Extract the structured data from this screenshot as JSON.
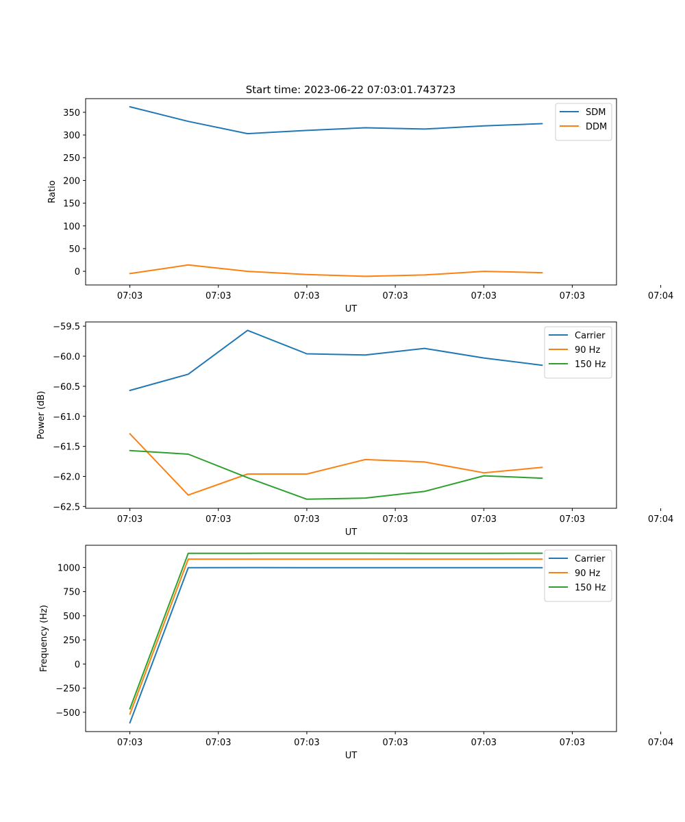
{
  "figure": {
    "title": "Start time: 2023-06-22 07:03:01.743723"
  },
  "chart_data": [
    {
      "type": "line",
      "xlabel": "UT",
      "ylabel": "Ratio",
      "x_tick_labels": [
        "07:03",
        "07:03",
        "07:03",
        "07:03",
        "07:03",
        "07:03",
        "07:04"
      ],
      "x_range": [
        -0.5,
        5.5
      ],
      "x": [
        0,
        0.66,
        1.33,
        2.0,
        2.66,
        3.33,
        4.0,
        4.66
      ],
      "ylim": [
        -30,
        380
      ],
      "y_ticks": [
        0,
        50,
        100,
        150,
        200,
        250,
        300,
        350
      ],
      "y_tick_labels": [
        "0",
        "50",
        "100",
        "150",
        "200",
        "250",
        "300",
        "350"
      ],
      "legend": "top-right",
      "series": [
        {
          "name": "SDM",
          "color": "#1f77b4",
          "values": [
            362,
            330,
            303,
            310,
            316,
            313,
            320,
            325
          ]
        },
        {
          "name": "DDM",
          "color": "#ff7f0e",
          "values": [
            -5,
            14,
            0,
            -7,
            -11,
            -8,
            0,
            -3
          ]
        }
      ]
    },
    {
      "type": "line",
      "xlabel": "UT",
      "ylabel": "Power (dB)",
      "x_tick_labels": [
        "07:03",
        "07:03",
        "07:03",
        "07:03",
        "07:03",
        "07:03",
        "07:04"
      ],
      "x_range": [
        -0.5,
        5.5
      ],
      "x": [
        0,
        0.66,
        1.33,
        2.0,
        2.66,
        3.33,
        4.0,
        4.66
      ],
      "ylim": [
        -62.53,
        -59.43
      ],
      "y_ticks": [
        -62.5,
        -62.0,
        -61.5,
        -61.0,
        -60.5,
        -60.0,
        -59.5
      ],
      "y_tick_labels": [
        "−62.5",
        "−62.0",
        "−61.5",
        "−61.0",
        "−60.5",
        "−60.0",
        "−59.5"
      ],
      "legend": "top-right",
      "series": [
        {
          "name": "Carrier",
          "color": "#1f77b4",
          "values": [
            -60.57,
            -60.3,
            -59.57,
            -59.96,
            -59.98,
            -59.87,
            -60.03,
            -60.15
          ]
        },
        {
          "name": "90 Hz",
          "color": "#ff7f0e",
          "values": [
            -61.29,
            -62.31,
            -61.96,
            -61.96,
            -61.72,
            -61.76,
            -61.94,
            -61.85
          ]
        },
        {
          "name": "150 Hz",
          "color": "#2ca02c",
          "values": [
            -61.57,
            -61.63,
            -62.02,
            -62.38,
            -62.36,
            -62.25,
            -61.99,
            -62.03
          ]
        }
      ]
    },
    {
      "type": "line",
      "xlabel": "UT",
      "ylabel": "Frequency (Hz)",
      "x_tick_labels": [
        "07:03",
        "07:03",
        "07:03",
        "07:03",
        "07:03",
        "07:03",
        "07:04"
      ],
      "x_range": [
        -0.5,
        5.5
      ],
      "x": [
        0,
        0.66,
        1.33,
        2.0,
        2.66,
        3.33,
        4.0,
        4.66
      ],
      "ylim": [
        -700,
        1230
      ],
      "y_ticks": [
        -500,
        -250,
        0,
        250,
        500,
        750,
        1000
      ],
      "y_tick_labels": [
        "−500",
        "−250",
        "0",
        "250",
        "500",
        "750",
        "1000"
      ],
      "legend": "top-right",
      "series": [
        {
          "name": "Carrier",
          "color": "#1f77b4",
          "values": [
            -610,
            997,
            999,
            997,
            997,
            998,
            997,
            997
          ]
        },
        {
          "name": "90 Hz",
          "color": "#ff7f0e",
          "values": [
            -520,
            1087,
            1087,
            1086,
            1086,
            1087,
            1087,
            1086
          ]
        },
        {
          "name": "150 Hz",
          "color": "#2ca02c",
          "values": [
            -465,
            1147,
            1147,
            1148,
            1148,
            1147,
            1147,
            1148
          ]
        }
      ]
    }
  ]
}
